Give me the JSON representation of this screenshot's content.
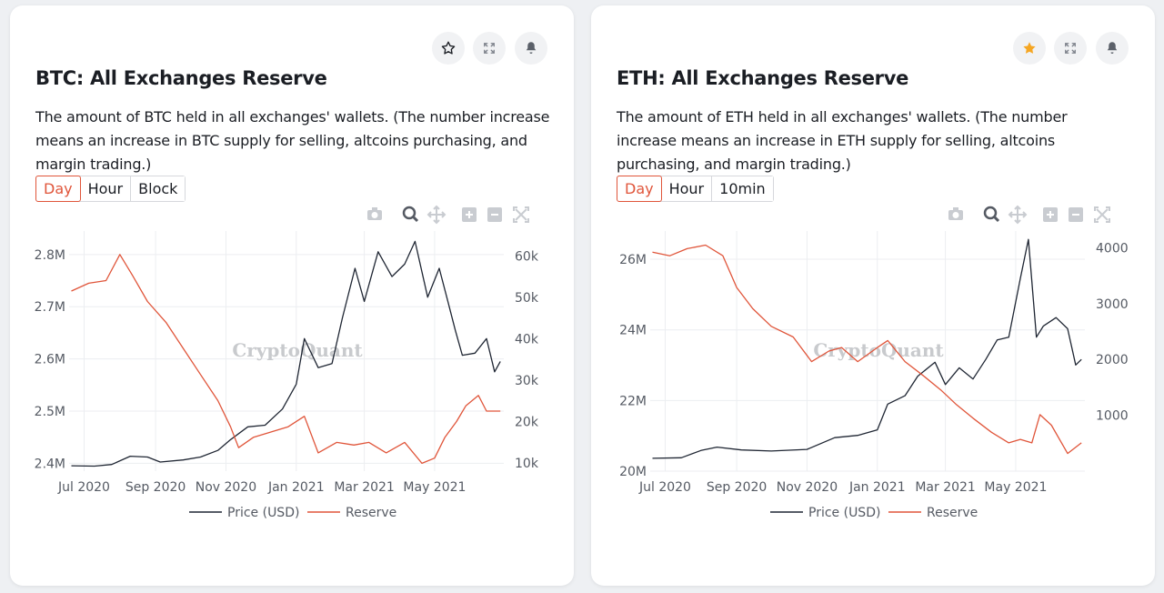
{
  "cards": [
    {
      "title": "BTC: All Exchanges Reserve",
      "description": "The amount of BTC held in all exchanges' wallets. (The number increase means an increase in BTC supply for selling, altcoins purchasing, and margin trading.)",
      "timeframes": [
        "Day",
        "Hour",
        "Block"
      ],
      "active_timeframe": "Day",
      "favorited": false,
      "watermark": "CryptoQuant",
      "chart_data": {
        "type": "line",
        "x_tick_labels": [
          "Jul 2020",
          "Sep 2020",
          "Nov 2020",
          "Jan 2021",
          "Mar 2021",
          "May 2021"
        ],
        "y_left": {
          "ticks": [
            2400000,
            2500000,
            2600000,
            2700000,
            2800000
          ],
          "tick_labels": [
            "2.4M",
            "2.5M",
            "2.6M",
            "2.7M",
            "2.8M"
          ],
          "range": [
            2385000,
            2845000
          ]
        },
        "y_right": {
          "ticks": [
            10000,
            20000,
            30000,
            40000,
            50000,
            60000
          ],
          "tick_labels": [
            "10k",
            "20k",
            "30k",
            "40k",
            "50k",
            "60k"
          ],
          "range": [
            8000,
            66000
          ]
        },
        "legend": [
          "Price (USD)",
          "Reserve"
        ],
        "series": [
          {
            "name": "Price (USD)",
            "axis": "right",
            "color": "#1f2633",
            "x": [
              "2020-06-20",
              "2020-07-10",
              "2020-07-25",
              "2020-08-10",
              "2020-08-25",
              "2020-09-05",
              "2020-09-25",
              "2020-10-10",
              "2020-10-25",
              "2020-11-05",
              "2020-11-20",
              "2020-12-05",
              "2020-12-20",
              "2021-01-01",
              "2021-01-08",
              "2021-01-20",
              "2021-02-01",
              "2021-02-10",
              "2021-02-21",
              "2021-03-01",
              "2021-03-13",
              "2021-03-25",
              "2021-04-05",
              "2021-04-14",
              "2021-04-25",
              "2021-05-05",
              "2021-05-12",
              "2021-05-19",
              "2021-05-25",
              "2021-06-05",
              "2021-06-15",
              "2021-06-22",
              "2021-06-27"
            ],
            "values": [
              9300,
              9200,
              9600,
              11600,
              11400,
              10200,
              10700,
              11400,
              13000,
              15600,
              18700,
              19100,
              23000,
              29000,
              40000,
              33000,
              34000,
              45000,
              57000,
              49000,
              61000,
              55000,
              58000,
              63500,
              50000,
              57000,
              49500,
              42000,
              36000,
              36500,
              40000,
              32000,
              34500
            ]
          },
          {
            "name": "Reserve",
            "axis": "left",
            "color": "#e0553a",
            "x": [
              "2020-06-20",
              "2020-07-05",
              "2020-07-20",
              "2020-08-01",
              "2020-08-12",
              "2020-08-25",
              "2020-09-10",
              "2020-09-25",
              "2020-10-10",
              "2020-10-25",
              "2020-11-05",
              "2020-11-12",
              "2020-11-25",
              "2020-12-10",
              "2020-12-25",
              "2021-01-08",
              "2021-01-20",
              "2021-02-05",
              "2021-02-20",
              "2021-03-05",
              "2021-03-20",
              "2021-04-05",
              "2021-04-20",
              "2021-05-01",
              "2021-05-10",
              "2021-05-20",
              "2021-05-28",
              "2021-06-08",
              "2021-06-15",
              "2021-06-27"
            ],
            "values": [
              2730000,
              2745000,
              2750000,
              2800000,
              2760000,
              2710000,
              2670000,
              2620000,
              2570000,
              2520000,
              2470000,
              2430000,
              2450000,
              2460000,
              2470000,
              2490000,
              2420000,
              2440000,
              2435000,
              2440000,
              2420000,
              2440000,
              2400000,
              2410000,
              2450000,
              2480000,
              2510000,
              2530000,
              2500000,
              2500000
            ]
          }
        ]
      }
    },
    {
      "title": "ETH: All Exchanges Reserve",
      "description": "The amount of ETH held in all exchanges' wallets. (The number increase means an increase in ETH supply for selling, altcoins purchasing, and margin trading.)",
      "timeframes": [
        "Day",
        "Hour",
        "10min"
      ],
      "active_timeframe": "Day",
      "favorited": true,
      "watermark": "CryptoQuant",
      "chart_data": {
        "type": "line",
        "x_tick_labels": [
          "Jul 2020",
          "Sep 2020",
          "Nov 2020",
          "Jan 2021",
          "Mar 2021",
          "May 2021"
        ],
        "y_left": {
          "ticks": [
            20000000,
            22000000,
            24000000,
            26000000
          ],
          "tick_labels": [
            "20M",
            "22M",
            "24M",
            "26M"
          ],
          "range": [
            20000000,
            26800000
          ]
        },
        "y_right": {
          "ticks": [
            1000,
            2000,
            3000,
            4000
          ],
          "tick_labels": [
            "1000",
            "2000",
            "3000",
            "4000"
          ],
          "range": [
            0,
            4300
          ]
        },
        "legend": [
          "Price (USD)",
          "Reserve"
        ],
        "series": [
          {
            "name": "Price (USD)",
            "axis": "right",
            "color": "#1f2633",
            "x": [
              "2020-06-20",
              "2020-07-15",
              "2020-08-01",
              "2020-08-15",
              "2020-09-05",
              "2020-10-01",
              "2020-11-01",
              "2020-11-25",
              "2020-12-15",
              "2021-01-01",
              "2021-01-10",
              "2021-01-25",
              "2021-02-05",
              "2021-02-20",
              "2021-03-01",
              "2021-03-13",
              "2021-03-25",
              "2021-04-05",
              "2021-04-15",
              "2021-04-25",
              "2021-05-05",
              "2021-05-12",
              "2021-05-19",
              "2021-05-25",
              "2021-06-05",
              "2021-06-15",
              "2021-06-22",
              "2021-06-27"
            ],
            "values": [
              230,
              240,
              370,
              430,
              380,
              360,
              390,
              600,
              640,
              740,
              1200,
              1350,
              1700,
              1950,
              1550,
              1850,
              1650,
              2000,
              2350,
              2400,
              3450,
              4150,
              2400,
              2600,
              2750,
              2550,
              1900,
              2000
            ]
          },
          {
            "name": "Reserve",
            "axis": "left",
            "color": "#e0553a",
            "x": [
              "2020-06-20",
              "2020-07-05",
              "2020-07-20",
              "2020-08-05",
              "2020-08-20",
              "2020-09-01",
              "2020-09-15",
              "2020-10-01",
              "2020-10-20",
              "2020-11-05",
              "2020-11-20",
              "2020-12-01",
              "2020-12-15",
              "2021-01-01",
              "2021-01-10",
              "2021-01-25",
              "2021-02-10",
              "2021-02-25",
              "2021-03-10",
              "2021-03-25",
              "2021-04-10",
              "2021-04-25",
              "2021-05-05",
              "2021-05-15",
              "2021-05-22",
              "2021-06-01",
              "2021-06-15",
              "2021-06-27"
            ],
            "values": [
              26200000,
              26100000,
              26300000,
              26400000,
              26100000,
              25200000,
              24600000,
              24100000,
              23800000,
              23100000,
              23400000,
              23500000,
              23100000,
              23500000,
              23700000,
              23100000,
              22700000,
              22300000,
              21900000,
              21500000,
              21100000,
              20800000,
              20900000,
              20800000,
              21600000,
              21300000,
              20500000,
              20800000
            ]
          }
        ]
      }
    }
  ]
}
